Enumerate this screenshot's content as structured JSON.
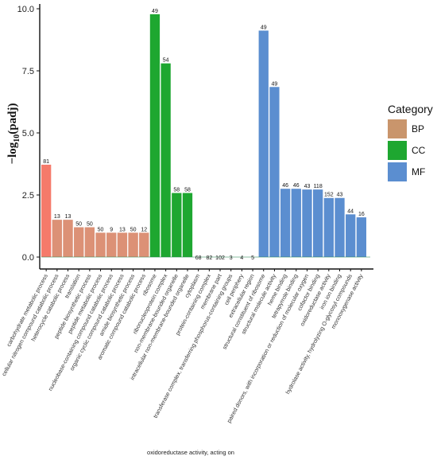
{
  "chart_data": {
    "type": "bar",
    "ylabel": "−log10(padj)",
    "ylabel_main": "−log",
    "ylabel_sub": "10",
    "ylabel_tail": "(padj)",
    "ylim": [
      0,
      10.2
    ],
    "yticks": [
      0.0,
      2.5,
      5.0,
      7.5,
      10.0
    ],
    "ytick_labels": [
      "0.0",
      "2.5",
      "5.0",
      "7.5",
      "10.0"
    ],
    "legend": {
      "title": "Category",
      "position": "right",
      "entries": [
        {
          "name": "BP",
          "color": "#c9956c"
        },
        {
          "name": "CC",
          "color": "#1ea730"
        },
        {
          "name": "MF",
          "color": "#5b8ed0"
        }
      ]
    },
    "bars": [
      {
        "term": "carbohydrate metabolic process",
        "value": 3.72,
        "count": "81",
        "category": "BP"
      },
      {
        "term": "cellular nitrogen compound catabolic process",
        "value": 1.5,
        "count": "13",
        "category": "BP"
      },
      {
        "term": "heterocycle catabolic process",
        "value": 1.5,
        "count": "13",
        "category": "BP"
      },
      {
        "term": "translation",
        "value": 1.2,
        "count": "50",
        "category": "BP"
      },
      {
        "term": "peptide biosynthetic process",
        "value": 1.2,
        "count": "50",
        "category": "BP"
      },
      {
        "term": "peptide metabolic process",
        "value": 0.98,
        "count": "50",
        "category": "BP"
      },
      {
        "term": "nucleobase-containing compound catabolic process",
        "value": 0.98,
        "count": "9",
        "category": "BP"
      },
      {
        "term": "organic cyclic compound catabolic process",
        "value": 0.98,
        "count": "13",
        "category": "BP"
      },
      {
        "term": "amide biosynthetic process",
        "value": 0.98,
        "count": "50",
        "category": "BP"
      },
      {
        "term": "aromatic compound catabolic process",
        "value": 0.98,
        "count": "12",
        "category": "BP"
      },
      {
        "term": "ribosome",
        "value": 9.78,
        "count": "49",
        "category": "CC"
      },
      {
        "term": "ribonucleoprotein complex",
        "value": 7.8,
        "count": "54",
        "category": "CC"
      },
      {
        "term": "non-membrane-bounded organelle",
        "value": 2.58,
        "count": "58",
        "category": "CC"
      },
      {
        "term": "intracellular non-membrane-bounded organelle",
        "value": 2.58,
        "count": "58",
        "category": "CC"
      },
      {
        "term": "cytoplasm",
        "value": 0.0,
        "count": "68",
        "category": "CC"
      },
      {
        "term": "protein-containing complex",
        "value": 0.0,
        "count": "82",
        "category": "CC"
      },
      {
        "term": "membrane part",
        "value": 0.0,
        "count": "102",
        "category": "CC"
      },
      {
        "term": "transferase complex, transferring phosphorus-containing groups",
        "value": 0.0,
        "count": "3",
        "category": "CC"
      },
      {
        "term": "cell periphery",
        "value": 0.0,
        "count": "4",
        "category": "CC"
      },
      {
        "term": "extracellular region",
        "value": 0.0,
        "count": "5",
        "category": "CC"
      },
      {
        "term": "structural constituent of ribosome",
        "value": 9.12,
        "count": "49",
        "category": "MF"
      },
      {
        "term": "structural molecule activity",
        "value": 6.85,
        "count": "49",
        "category": "MF"
      },
      {
        "term": "heme binding",
        "value": 2.75,
        "count": "46",
        "category": "MF"
      },
      {
        "term": "tetrapyrrole binding",
        "value": 2.75,
        "count": "46",
        "category": "MF"
      },
      {
        "term": "oxidoreductase activity, acting on paired donors, with incorporation or reduction of molecular oxygen",
        "value": 2.72,
        "count": "43",
        "category": "MF"
      },
      {
        "term": "cofactor binding",
        "value": 2.72,
        "count": "118",
        "category": "MF"
      },
      {
        "term": "oxidoreductase activity",
        "value": 2.38,
        "count": "152",
        "category": "MF"
      },
      {
        "term": "iron ion binding",
        "value": 2.38,
        "count": "43",
        "category": "MF"
      },
      {
        "term": "hydrolase activity, hydrolyzing O-glycosyl compounds",
        "value": 1.72,
        "count": "44",
        "category": "MF"
      },
      {
        "term": "monooxygenase activity",
        "value": 1.6,
        "count": "16",
        "category": "MF"
      }
    ],
    "xtick_labels": [
      "carbohydrate metabolic process",
      "cellular nitrogen compound catabolic process",
      "heterocycle catabolic process",
      "translation",
      "peptide biosynthetic process",
      "peptide metabolic process",
      "nucleobase-containing compound catabolic process",
      "organic cyclic compound catabolic process",
      "amide biosynthetic process",
      "aromatic compound catabolic process",
      "ribosome",
      "ribonucleoprotein complex",
      "non-membrane-bounded organelle",
      "intracellular non-membrane-bounded organelle",
      "cytoplasm",
      "protein-containing complex",
      "membrane part",
      "transferase complex, transferring phosphorus-containing groups",
      "cell periphery",
      "extracellular region",
      "structural constituent of ribosome",
      "structural molecule activity",
      "heme binding",
      "tetrapyrrole binding",
      "paired donors, with incorporation or reduction of molecular oxygen",
      "cofactor binding",
      "oxidoreductase activity",
      "iron ion binding",
      "hydrolase activity, hydrolyzing O-glycosyl compounds",
      "monooxygenase activity"
    ],
    "footnote": "oxidoreductase activity, acting on",
    "colors": {
      "bp_fill": "#c9956c",
      "bp_fill_first": "#f57a6a",
      "cc_fill": "#1ea730",
      "mf_fill": "#5b8ed0",
      "bp_overlay": "#ff8a8a",
      "baseline": "#2e8b57"
    }
  }
}
